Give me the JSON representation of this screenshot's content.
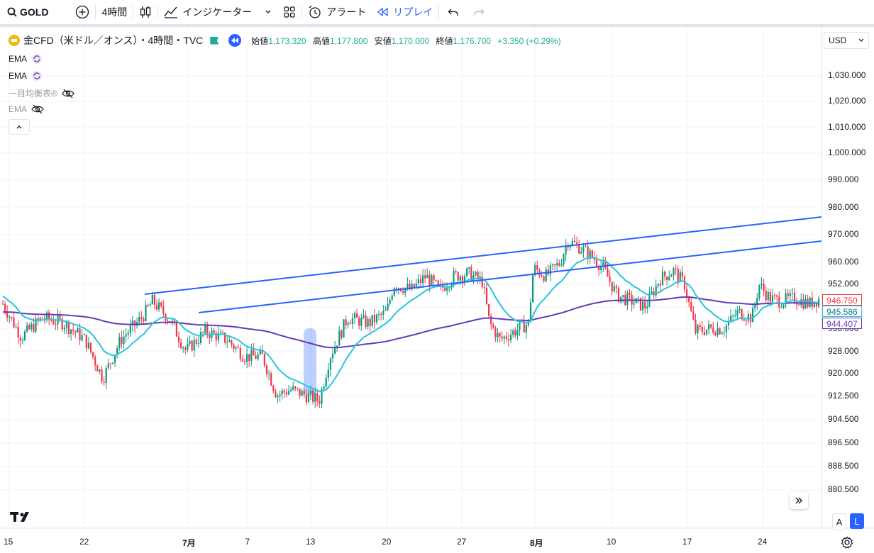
{
  "toolbar": {
    "symbol": "GOLD",
    "interval": "4時間",
    "indicators_label": "インジケーター",
    "alert_label": "アラート",
    "replay_label": "リプレイ"
  },
  "legend": {
    "title": "金CFD（米ドル／オンス）・4時間・TVC",
    "open_label": "始値",
    "open": "1,173.320",
    "high_label": "高値",
    "high": "1,177.800",
    "low_label": "安値",
    "low": "1,170.000",
    "close_label": "終値",
    "close": "1,176.700",
    "change": "+3.350 (+0.29%)"
  },
  "indicators": [
    {
      "label": "EMA",
      "state": "loading"
    },
    {
      "label": "EMA",
      "state": "loading"
    },
    {
      "label": "一目均衡表®",
      "state": "hidden"
    },
    {
      "label": "EMA",
      "state": "hidden"
    }
  ],
  "currency": "USD",
  "price_axis": [
    "1,030.000",
    "1,020.000",
    "1,010.000",
    "1,000.000",
    "990.000",
    "980.000",
    "970.000",
    "960.000",
    "952.000",
    "944.000",
    "936.000",
    "928.000",
    "920.000",
    "912.500",
    "904.500",
    "896.500",
    "888.500",
    "880.500"
  ],
  "price_tags": {
    "last": {
      "value": "946.750",
      "color": "#f23645"
    },
    "ema_fast": {
      "value": "945.586",
      "color": "#26c6da"
    },
    "ema_slow": {
      "value": "944.407",
      "color": "#673ab7"
    }
  },
  "time_axis": [
    "15",
    "22",
    "7月",
    "7",
    "13",
    "20",
    "27",
    "8月",
    "10",
    "17",
    "24"
  ],
  "buttons": {
    "auto": "A",
    "log": "L"
  },
  "colors": {
    "up": "#089981",
    "down": "#f23645",
    "trend": "#2962ff",
    "ema_fast": "#26c6da",
    "ema_slow": "#673ab7"
  }
}
